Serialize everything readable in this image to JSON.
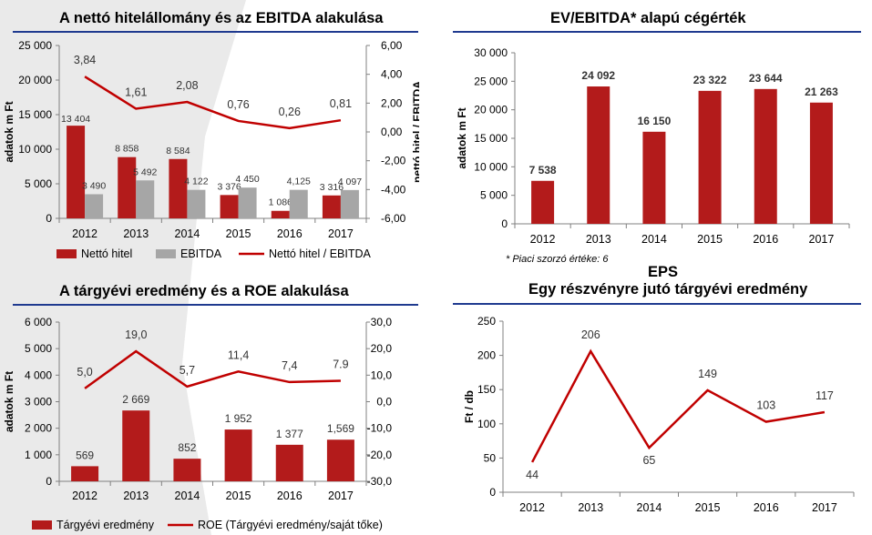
{
  "colors": {
    "bar": "#b31b1b",
    "bar_gray": "#a6a6a6",
    "line": "#c00000",
    "rule": "#1f3a8f"
  },
  "chart_data": [
    {
      "id": "c1",
      "type": "bar",
      "title": "A nettó hitelállomány és az EBITDA alakulása",
      "categories": [
        "2012",
        "2013",
        "2014",
        "2015",
        "2016",
        "2017"
      ],
      "series": [
        {
          "name": "Nettó hitel",
          "kind": "bar",
          "color": "#b31b1b",
          "values": [
            13404,
            8858,
            8584,
            3376,
            1086,
            3316
          ],
          "labels": [
            "13 404",
            "8 858",
            "8 584",
            "3 376",
            "1 086",
            "3 316"
          ]
        },
        {
          "name": "EBITDA",
          "kind": "bar",
          "color": "#a6a6a6",
          "values": [
            3490,
            5492,
            4122,
            4450,
            4125,
            4097
          ],
          "labels": [
            "3 490",
            "5 492",
            "4 122",
            "4 450",
            "4,125",
            "4 097"
          ]
        },
        {
          "name": "Nettó hitel / EBITDA",
          "kind": "line",
          "axis": "right",
          "color": "#c00000",
          "values": [
            3.84,
            1.61,
            2.08,
            0.76,
            0.26,
            0.81
          ],
          "labels": [
            "3,84",
            "1,61",
            "2,08",
            "0,76",
            "0,26",
            "0,81"
          ]
        }
      ],
      "ylabel": "adatok m Ft",
      "y2label": "nettó hitel / EBITDA",
      "ylim": [
        0,
        25000
      ],
      "yticks": [
        0,
        5000,
        10000,
        15000,
        20000,
        25000
      ],
      "yticklabels": [
        "0",
        "5 000",
        "10 000",
        "15 000",
        "20 000",
        "25 000"
      ],
      "y2lim": [
        -6,
        6
      ],
      "y2ticks": [
        -6,
        -4,
        -2,
        0,
        2,
        4,
        6
      ],
      "y2ticklabels": [
        "-6,00",
        "-4,00",
        "-2,00",
        "0,00",
        "2,00",
        "4,00",
        "6,00"
      ],
      "legend": [
        "Nettó hitel",
        "EBITDA",
        "Nettó hitel / EBITDA"
      ]
    },
    {
      "id": "c2",
      "type": "bar",
      "title": "EV/EBITDA* alapú cégérték",
      "categories": [
        "2012",
        "2013",
        "2014",
        "2015",
        "2016",
        "2017"
      ],
      "series": [
        {
          "name": "cégérték",
          "kind": "bar",
          "color": "#b31b1b",
          "values": [
            7538,
            24092,
            16150,
            23322,
            23644,
            21263
          ],
          "labels": [
            "7 538",
            "24 092",
            "16 150",
            "23 322",
            "23 644",
            "21 263"
          ]
        }
      ],
      "ylabel": "adatok m Ft",
      "ylim": [
        0,
        30000
      ],
      "yticks": [
        0,
        5000,
        10000,
        15000,
        20000,
        25000,
        30000
      ],
      "yticklabels": [
        "0",
        "5 000",
        "10 000",
        "15 000",
        "20 000",
        "25 000",
        "30 000"
      ],
      "footnote": "* Piaci szorzó értéke: 6"
    },
    {
      "id": "c3",
      "type": "bar",
      "title": "A tárgyévi eredmény és a ROE alakulása",
      "categories": [
        "2012",
        "2013",
        "2014",
        "2015",
        "2016",
        "2017"
      ],
      "series": [
        {
          "name": "Tárgyévi eredmény",
          "kind": "bar",
          "color": "#b31b1b",
          "values": [
            569,
            2669,
            852,
            1952,
            1377,
            1569
          ],
          "labels": [
            "569",
            "2 669",
            "852",
            "1 952",
            "1 377",
            "1,569"
          ]
        },
        {
          "name": "ROE (Tárgyévi eredmény/saját tőke)",
          "kind": "line",
          "axis": "right",
          "color": "#c00000",
          "values": [
            5.0,
            19.0,
            5.7,
            11.4,
            7.4,
            7.9
          ],
          "labels": [
            "5,0",
            "19,0",
            "5,7",
            "11,4",
            "7,4",
            "7.9"
          ]
        }
      ],
      "ylabel": "adatok m Ft",
      "ylim": [
        0,
        6000
      ],
      "yticks": [
        0,
        1000,
        2000,
        3000,
        4000,
        5000,
        6000
      ],
      "yticklabels": [
        "0",
        "1 000",
        "2 000",
        "3 000",
        "4 000",
        "5 000",
        "6 000"
      ],
      "y2lim": [
        -30,
        30
      ],
      "y2ticks": [
        -30,
        -20,
        -10,
        0,
        10,
        20,
        30
      ],
      "y2ticklabels": [
        "-30,0",
        "-20,0",
        "-10,0",
        "0,0",
        "10,0",
        "20,0",
        "30,0"
      ],
      "legend": [
        "Tárgyévi eredmény",
        "ROE (Tárgyévi eredmény/saját tőke)"
      ]
    },
    {
      "id": "c4",
      "type": "line",
      "title": "Egy részvényre jutó tárgyévi eredmény",
      "supertitle": "EPS",
      "categories": [
        "2012",
        "2013",
        "2014",
        "2015",
        "2016",
        "2017"
      ],
      "series": [
        {
          "name": "EPS",
          "kind": "line",
          "color": "#c00000",
          "values": [
            44,
            206,
            65,
            149,
            103,
            117
          ],
          "labels": [
            "44",
            "206",
            "65",
            "149",
            "103",
            "117"
          ]
        }
      ],
      "ylabel": "Ft / db",
      "ylim": [
        0,
        250
      ],
      "yticks": [
        0,
        50,
        100,
        150,
        200,
        250
      ],
      "yticklabels": [
        "0",
        "50",
        "100",
        "150",
        "200",
        "250"
      ]
    }
  ]
}
